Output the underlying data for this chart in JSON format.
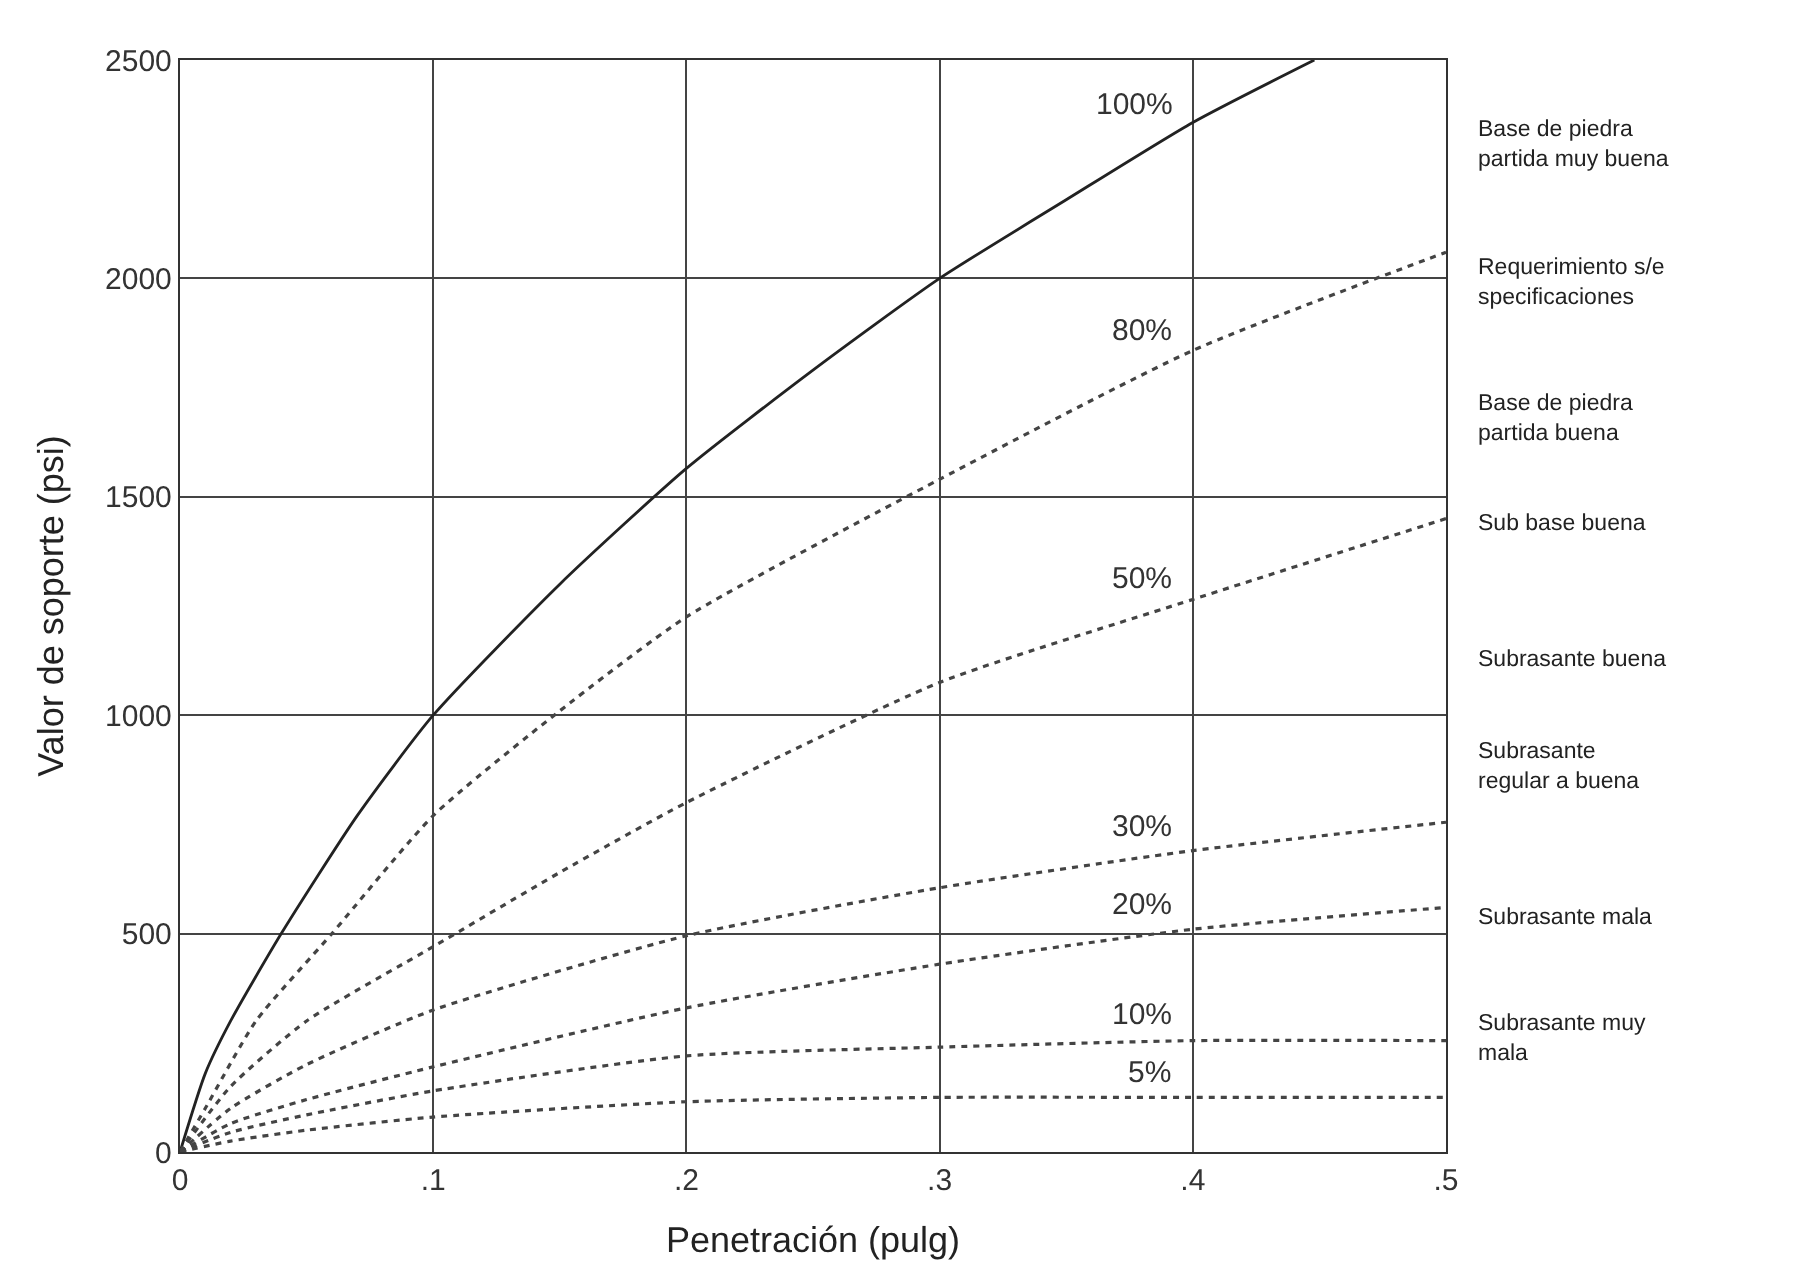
{
  "chart_data": {
    "type": "line",
    "xlabel": "Penetración (pulg)",
    "ylabel": "Valor de soporte (psi)",
    "xlim": [
      0,
      0.5
    ],
    "ylim": [
      0,
      2500
    ],
    "xticks": [
      0,
      {
        "value": 0.1,
        "label": ".1"
      },
      {
        "value": 0.2,
        "label": ".2"
      },
      {
        "value": 0.3,
        "label": ".3"
      },
      {
        "value": 0.4,
        "label": ".4"
      },
      {
        "value": 0.5,
        "label": ".5"
      }
    ],
    "yticks": [
      0,
      500,
      1000,
      1500,
      2000,
      2500
    ],
    "grid": true,
    "legend": false,
    "marker": "none",
    "series": [
      {
        "name": "100%",
        "color": "#222222",
        "line_style": "solid",
        "x": [
          0,
          0.01,
          0.02,
          0.04,
          0.07,
          0.1,
          0.15,
          0.2,
          0.25,
          0.3,
          0.35,
          0.4,
          0.448
        ],
        "values": [
          0,
          180,
          300,
          500,
          770,
          1000,
          1300,
          1565,
          1790,
          2000,
          2180,
          2357,
          2500
        ]
      },
      {
        "name": "80%",
        "color": "#444444",
        "line_style": "dotted",
        "x": [
          0,
          0.01,
          0.03,
          0.06,
          0.1,
          0.15,
          0.2,
          0.3,
          0.4,
          0.5
        ],
        "values": [
          0,
          100,
          300,
          500,
          770,
          1010,
          1225,
          1540,
          1835,
          2060
        ]
      },
      {
        "name": "50%",
        "color": "#444444",
        "line_style": "dotted",
        "x": [
          0,
          0.02,
          0.05,
          0.1,
          0.15,
          0.2,
          0.3,
          0.4,
          0.5
        ],
        "values": [
          0,
          150,
          300,
          470,
          640,
          800,
          1075,
          1265,
          1450
        ]
      },
      {
        "name": "30%",
        "color": "#444444",
        "line_style": "dotted",
        "x": [
          0,
          0.02,
          0.05,
          0.1,
          0.2,
          0.3,
          0.4,
          0.5
        ],
        "values": [
          0,
          100,
          200,
          325,
          495,
          605,
          690,
          755
        ]
      },
      {
        "name": "20%",
        "color": "#444444",
        "line_style": "dotted",
        "x": [
          0,
          0.02,
          0.05,
          0.1,
          0.2,
          0.3,
          0.4,
          0.5
        ],
        "values": [
          0,
          65,
          120,
          195,
          330,
          430,
          510,
          560
        ]
      },
      {
        "name": "10%",
        "color": "#444444",
        "line_style": "dotted",
        "x": [
          0,
          0.02,
          0.05,
          0.1,
          0.2,
          0.3,
          0.4,
          0.5
        ],
        "values": [
          0,
          45,
          85,
          140,
          220,
          240,
          255,
          255
        ]
      },
      {
        "name": "5%",
        "color": "#444444",
        "line_style": "dotted",
        "x": [
          0,
          0.02,
          0.05,
          0.1,
          0.2,
          0.3,
          0.4,
          0.5
        ],
        "values": [
          0,
          25,
          50,
          80,
          115,
          125,
          125,
          125
        ]
      }
    ],
    "annotations": [
      "Base de piedra partida muy buena",
      "Requerimiento s/especificaciones",
      "Base de piedra partida buena",
      "Sub base buena",
      "Subrasante buena",
      "Subrasante regular a buena",
      "Subrasante mala",
      "Subrasante muy mala"
    ]
  }
}
